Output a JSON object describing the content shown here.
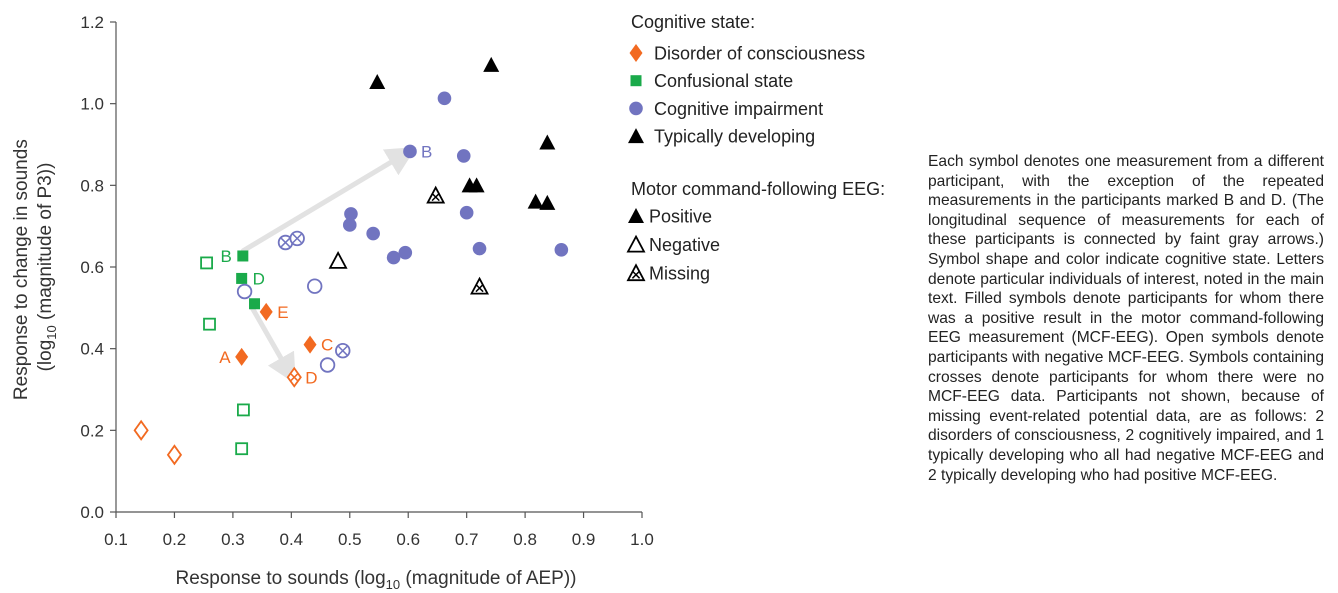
{
  "chart_data": {
    "type": "scatter",
    "xlabel": "Response to sounds (log",
    "xlabel_sub": "10",
    "xlabel_end": " (magnitude of AEP))",
    "ylabel_line1": "Response to change in sounds",
    "ylabel_line2_start": "(log",
    "ylabel_line2_sub": "10",
    "ylabel_line2_end": " (magnitude of P3))",
    "xlim": [
      0.1,
      1.0
    ],
    "ylim": [
      0.0,
      1.2
    ],
    "xticks": [
      0.1,
      0.2,
      0.3,
      0.4,
      0.5,
      0.6,
      0.7,
      0.8,
      0.9,
      1.0
    ],
    "xtick_labels": [
      "0.1",
      "0.2",
      "0.3",
      "0.4",
      "0.5",
      "0.6",
      "0.7",
      "0.8",
      "0.9",
      "1.0"
    ],
    "yticks": [
      0.0,
      0.2,
      0.4,
      0.6,
      0.8,
      1.0,
      1.2
    ],
    "ytick_labels": [
      "0.0",
      "0.2",
      "0.4",
      "0.6",
      "0.8",
      "1.0",
      "1.2"
    ],
    "colors": {
      "disorder": "#f26a21",
      "confusional": "#1aaa4a",
      "cognitive": "#7174c0",
      "typical": "#000000",
      "arrow": "#e2e2e2",
      "axis": "#555555"
    },
    "legend_cognitive": {
      "title": "Cognitive state:",
      "items": [
        {
          "label": "Disorder of consciousness",
          "group": "disorder",
          "shape": "diamond"
        },
        {
          "label": "Confusional state",
          "group": "confusional",
          "shape": "square"
        },
        {
          "label": "Cognitive impairment",
          "group": "cognitive",
          "shape": "circle"
        },
        {
          "label": "Typically developing",
          "group": "typical",
          "shape": "triangle"
        }
      ]
    },
    "legend_mcf": {
      "title": "Motor command-following EEG:",
      "items": [
        {
          "label": "Positive",
          "status": "filled"
        },
        {
          "label": "Negative",
          "status": "open"
        },
        {
          "label": "Missing",
          "status": "crossed"
        }
      ]
    },
    "points": [
      {
        "group": "disorder",
        "status": "open",
        "x": 0.143,
        "y": 0.2
      },
      {
        "group": "disorder",
        "status": "open",
        "x": 0.2,
        "y": 0.14
      },
      {
        "group": "disorder",
        "status": "filled",
        "x": 0.315,
        "y": 0.38,
        "label": "A",
        "label_side": "left"
      },
      {
        "group": "disorder",
        "status": "filled",
        "x": 0.357,
        "y": 0.49,
        "label": "E",
        "label_side": "right"
      },
      {
        "group": "disorder",
        "status": "filled",
        "x": 0.432,
        "y": 0.41,
        "label": "C",
        "label_side": "right"
      },
      {
        "group": "disorder",
        "status": "crossed",
        "x": 0.405,
        "y": 0.33,
        "label": "D",
        "label_side": "right"
      },
      {
        "group": "confusional",
        "status": "open",
        "x": 0.255,
        "y": 0.61
      },
      {
        "group": "confusional",
        "status": "open",
        "x": 0.26,
        "y": 0.46
      },
      {
        "group": "confusional",
        "status": "open",
        "x": 0.318,
        "y": 0.25
      },
      {
        "group": "confusional",
        "status": "open",
        "x": 0.315,
        "y": 0.155
      },
      {
        "group": "confusional",
        "status": "filled",
        "x": 0.317,
        "y": 0.627,
        "label": "B",
        "label_side": "left"
      },
      {
        "group": "confusional",
        "status": "filled",
        "x": 0.315,
        "y": 0.572,
        "label": "D",
        "label_side": "right"
      },
      {
        "group": "confusional",
        "status": "filled",
        "x": 0.337,
        "y": 0.51
      },
      {
        "group": "cognitive",
        "status": "open",
        "x": 0.32,
        "y": 0.54
      },
      {
        "group": "cognitive",
        "status": "open",
        "x": 0.44,
        "y": 0.553
      },
      {
        "group": "cognitive",
        "status": "open",
        "x": 0.462,
        "y": 0.36
      },
      {
        "group": "cognitive",
        "status": "crossed",
        "x": 0.39,
        "y": 0.66
      },
      {
        "group": "cognitive",
        "status": "crossed",
        "x": 0.41,
        "y": 0.67
      },
      {
        "group": "cognitive",
        "status": "crossed",
        "x": 0.488,
        "y": 0.395
      },
      {
        "group": "cognitive",
        "status": "filled",
        "x": 0.5,
        "y": 0.703
      },
      {
        "group": "cognitive",
        "status": "filled",
        "x": 0.502,
        "y": 0.73
      },
      {
        "group": "cognitive",
        "status": "filled",
        "x": 0.54,
        "y": 0.682
      },
      {
        "group": "cognitive",
        "status": "filled",
        "x": 0.575,
        "y": 0.623
      },
      {
        "group": "cognitive",
        "status": "filled",
        "x": 0.595,
        "y": 0.635
      },
      {
        "group": "cognitive",
        "status": "filled",
        "x": 0.603,
        "y": 0.883,
        "label": "B",
        "label_side": "right"
      },
      {
        "group": "cognitive",
        "status": "filled",
        "x": 0.662,
        "y": 1.013
      },
      {
        "group": "cognitive",
        "status": "filled",
        "x": 0.695,
        "y": 0.872
      },
      {
        "group": "cognitive",
        "status": "filled",
        "x": 0.7,
        "y": 0.733
      },
      {
        "group": "cognitive",
        "status": "filled",
        "x": 0.722,
        "y": 0.645
      },
      {
        "group": "cognitive",
        "status": "filled",
        "x": 0.862,
        "y": 0.642
      },
      {
        "group": "typical",
        "status": "filled",
        "x": 0.547,
        "y": 1.053
      },
      {
        "group": "typical",
        "status": "filled",
        "x": 0.742,
        "y": 1.095
      },
      {
        "group": "typical",
        "status": "filled",
        "x": 0.838,
        "y": 0.905
      },
      {
        "group": "typical",
        "status": "filled",
        "x": 0.705,
        "y": 0.8
      },
      {
        "group": "typical",
        "status": "filled",
        "x": 0.717,
        "y": 0.8
      },
      {
        "group": "typical",
        "status": "filled",
        "x": 0.818,
        "y": 0.76
      },
      {
        "group": "typical",
        "status": "filled",
        "x": 0.838,
        "y": 0.757
      },
      {
        "group": "typical",
        "status": "open",
        "x": 0.48,
        "y": 0.615
      },
      {
        "group": "typical",
        "status": "crossed",
        "x": 0.647,
        "y": 0.775
      },
      {
        "group": "typical",
        "status": "crossed",
        "x": 0.722,
        "y": 0.552
      }
    ],
    "arrows": [
      {
        "from": [
          0.318,
          0.64
        ],
        "to": [
          0.592,
          0.875
        ]
      },
      {
        "from": [
          0.333,
          0.5
        ],
        "to": [
          0.395,
          0.345
        ]
      }
    ]
  },
  "caption": "Each symbol denotes one measurement from a different participant, with the exception of the repeated measurements in the participants marked B and D. (The longitudinal sequence of measurements for each of these participants is connected by faint gray arrows.) Symbol shape and color indicate cognitive state. Letters denote particular individuals of interest, noted in the main text. Filled symbols denote participants for whom there was a positive result in the motor command-following EEG measurement (MCF-EEG). Open symbols denote participants with negative MCF-EEG. Symbols containing crosses denote participants for whom there were no MCF-EEG data. Participants not shown, because of missing event-related potential data, are as follows: 2 disorders of consciousness, 2 cognitively impaired, and 1 typically developing who all had negative MCF-EEG and 2 typically developing who had positive MCF-EEG."
}
